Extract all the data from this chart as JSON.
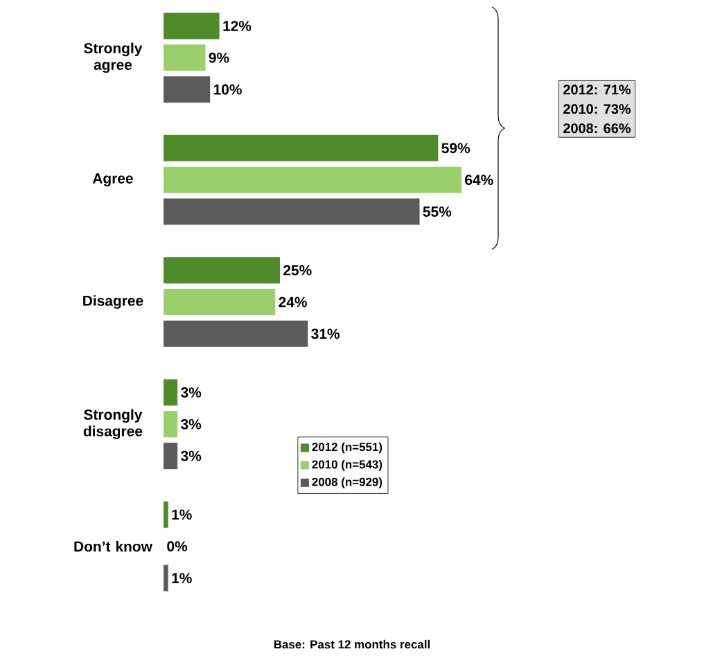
{
  "chart_data": {
    "type": "bar",
    "orientation": "horizontal",
    "categories": [
      "Strongly agree",
      "Agree",
      "Disagree",
      "Strongly disagree",
      "Don’t know"
    ],
    "series": [
      {
        "name": "2012 (n=551)",
        "color": "#4f8a2b",
        "values": [
          12,
          59,
          25,
          3,
          1
        ],
        "value_labels": [
          "12%",
          "59%",
          "25%",
          "3%",
          "1%"
        ]
      },
      {
        "name": "2010 (n=543)",
        "color": "#9bcf6b",
        "values": [
          9,
          64,
          24,
          3,
          0
        ],
        "value_labels": [
          "9%",
          "64%",
          "24%",
          "3%",
          "0%"
        ]
      },
      {
        "name": "2008 (n=929)",
        "color": "#5b5b5b",
        "values": [
          10,
          55,
          31,
          3,
          1
        ],
        "value_labels": [
          "10%",
          "55%",
          "31%",
          "3%",
          "1%"
        ]
      }
    ],
    "legend": "right",
    "annotations": [
      "2012: 71%",
      "2010: 73%",
      "2008: 66%",
      "Base: Past 12 months recall"
    ]
  }
}
